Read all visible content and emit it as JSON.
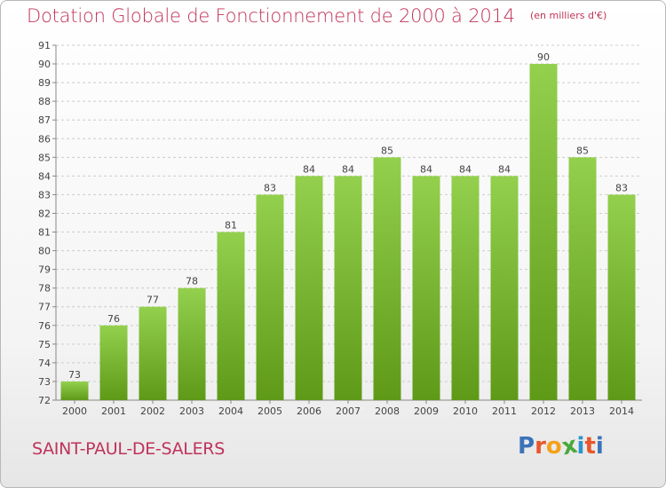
{
  "colors": {
    "title": "#c0335a",
    "bar_top": "#93d04d",
    "bar_bottom": "#5e9a18",
    "grid": "#cccccc",
    "logo_letters": [
      "#3b73b9",
      "#e8572a",
      "#f4a21b",
      "#4aa83b",
      "#2d92d0",
      "#e8572a",
      "#3b73b9"
    ]
  },
  "chart_data": {
    "type": "bar",
    "title": "Dotation Globale de Fonctionnement de 2000 à 2014",
    "unit": "(en milliers d'€)",
    "xlabel": "",
    "ylabel": "",
    "categories": [
      "2000",
      "2001",
      "2002",
      "2003",
      "2004",
      "2005",
      "2006",
      "2007",
      "2008",
      "2009",
      "2010",
      "2011",
      "2012",
      "2013",
      "2014"
    ],
    "values": [
      73,
      76,
      77,
      78,
      81,
      83,
      84,
      84,
      85,
      84,
      84,
      84,
      90,
      85,
      83
    ],
    "ylim": [
      72,
      91
    ],
    "yticks": [
      72,
      73,
      74,
      75,
      76,
      77,
      78,
      79,
      80,
      81,
      82,
      83,
      84,
      85,
      86,
      87,
      88,
      89,
      90,
      91
    ],
    "grid": true
  },
  "footer": {
    "commune": "SAINT-PAUL-DE-SALERS",
    "logo_letters": [
      "P",
      "r",
      "o",
      "x",
      "i",
      "t",
      "i"
    ]
  }
}
